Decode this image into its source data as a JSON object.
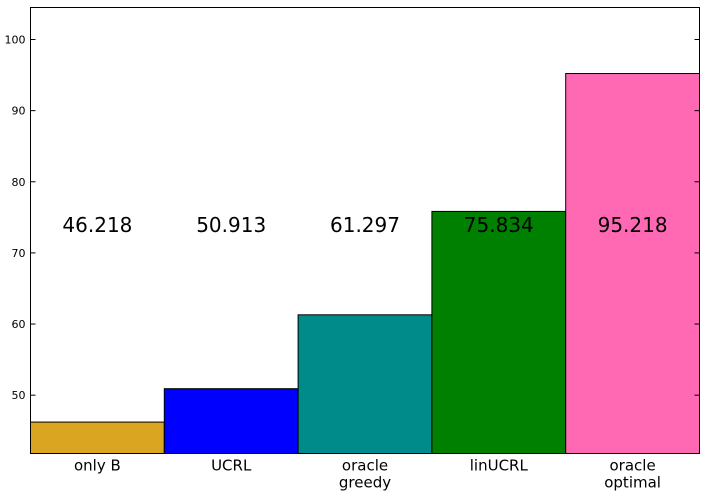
{
  "chart_data": {
    "type": "bar",
    "categories": [
      [
        "only B"
      ],
      [
        "UCRL"
      ],
      [
        "oracle",
        "greedy"
      ],
      [
        "linUCRL"
      ],
      [
        "oracle",
        "optimal"
      ]
    ],
    "values": [
      46.218,
      50.913,
      61.297,
      75.834,
      95.218
    ],
    "data_labels": [
      "46.218",
      "50.913",
      "61.297",
      "75.834",
      "95.218"
    ],
    "bar_colors": [
      "#DAA520",
      "#0000FF",
      "#008B8B",
      "#008000",
      "#FF69B4"
    ],
    "yticks": [
      50,
      60,
      70,
      80,
      90,
      100
    ],
    "ylim": [
      41.8,
      104.5
    ],
    "label_y_value": 73.9,
    "title": "",
    "xlabel": "",
    "ylabel": "",
    "grid": false,
    "legend": "none"
  }
}
